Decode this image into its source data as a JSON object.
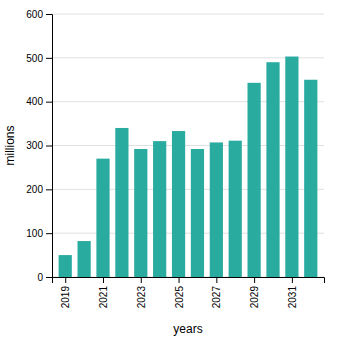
{
  "chart_data": {
    "type": "bar",
    "x": [
      2019,
      2020,
      2021,
      2022,
      2023,
      2024,
      2025,
      2026,
      2027,
      2028,
      2029,
      2030,
      2031,
      2032
    ],
    "values": [
      50,
      82,
      270,
      340,
      292,
      310,
      333,
      292,
      307,
      311,
      443,
      490,
      503,
      450
    ],
    "color": "#2aaba0",
    "xlabel": "years",
    "ylabel": "millions",
    "xlim": [
      2018.3,
      2032.7
    ],
    "xticks": [
      2019,
      2021,
      2023,
      2025,
      2027,
      2029,
      2031
    ],
    "ylim": [
      0,
      600
    ],
    "yticks": [
      0,
      100,
      200,
      300,
      400,
      500,
      600
    ],
    "grid": true
  }
}
